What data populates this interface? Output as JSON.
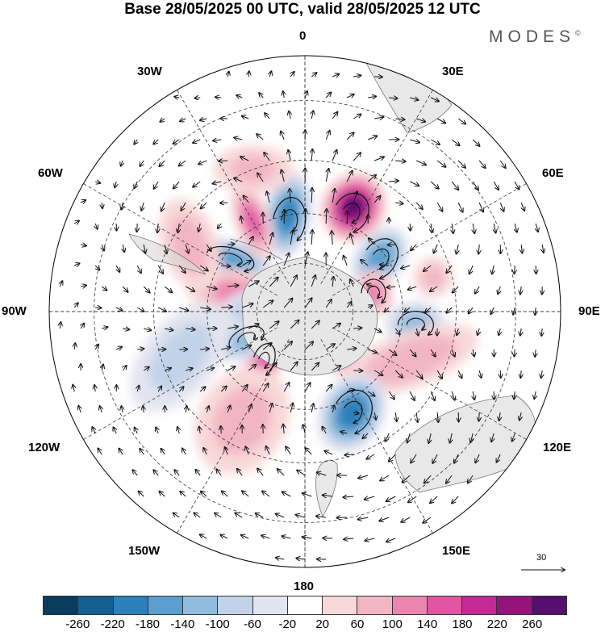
{
  "title": "Base 28/05/2025 00 UTC, valid 28/05/2025 12 UTC",
  "brand": {
    "text": "MODES",
    "mark": "©"
  },
  "longitude_labels": {
    "top": "0",
    "bottom": "180",
    "left": "90W",
    "right": "90E",
    "upper_left_30": "30W",
    "upper_right_30": "30E",
    "upper_left_60": "60W",
    "upper_right_60": "60E",
    "lower_left_120": "120W",
    "lower_right_120": "120E",
    "lower_left_150": "150W",
    "lower_right_150": "150E"
  },
  "reference_vector": {
    "label": "30"
  },
  "colorbar": {
    "colors": [
      "#0b3c5d",
      "#135f91",
      "#2b7fba",
      "#5a9fcf",
      "#92bcdd",
      "#c2d3e9",
      "#e3e4f0",
      "#ffffff",
      "#f8d8d9",
      "#f2b6c3",
      "#eb85b0",
      "#e055a2",
      "#c42a93",
      "#93157c",
      "#55106e"
    ],
    "ticks": [
      "-260",
      "-220",
      "-180",
      "-140",
      "-100",
      "-60",
      "-20",
      "20",
      "60",
      "100",
      "140",
      "180",
      "220",
      "260"
    ]
  },
  "anomaly_centers": [
    {
      "lon": -10,
      "lat": 60,
      "value": -190,
      "sx": 30,
      "sy": 55,
      "rot": 10
    },
    {
      "lon": 25,
      "lat": 55,
      "value": 260,
      "sx": 40,
      "sy": 45,
      "rot": 30
    },
    {
      "lon": -55,
      "lat": 62,
      "value": -170,
      "sx": 55,
      "sy": 24,
      "rot": 15
    },
    {
      "lon": -30,
      "lat": 58,
      "value": 140,
      "sx": 22,
      "sy": 50,
      "rot": -20
    },
    {
      "lon": 55,
      "lat": 62,
      "value": -170,
      "sx": 30,
      "sy": 45,
      "rot": 35
    },
    {
      "lon": 75,
      "lat": 68,
      "value": 110,
      "sx": 25,
      "sy": 30,
      "rot": 0
    },
    {
      "lon": 97,
      "lat": 56,
      "value": -120,
      "sx": 38,
      "sy": 30,
      "rot": 0
    },
    {
      "lon": 115,
      "lat": 55,
      "value": 90,
      "sx": 90,
      "sy": 35,
      "rot": -20
    },
    {
      "lon": 155,
      "lat": 56,
      "value": -200,
      "sx": 40,
      "sy": 52,
      "rot": 30
    },
    {
      "lon": -140,
      "lat": 70,
      "value": 150,
      "sx": 24,
      "sy": 45,
      "rot": 20
    },
    {
      "lon": -115,
      "lat": 70,
      "value": -120,
      "sx": 45,
      "sy": 24,
      "rot": -25
    },
    {
      "lon": -75,
      "lat": 68,
      "value": 100,
      "sx": 65,
      "sy": 30,
      "rot": 10
    },
    {
      "lon": -90,
      "lat": 72,
      "value": -80,
      "sx": 30,
      "sy": 25,
      "rot": 0
    },
    {
      "lon": -150,
      "lat": 52,
      "value": 70,
      "sx": 55,
      "sy": 70,
      "rot": 30
    },
    {
      "lon": -110,
      "lat": 50,
      "value": -70,
      "sx": 45,
      "sy": 80,
      "rot": 40
    },
    {
      "lon": -60,
      "lat": 50,
      "value": 70,
      "sx": 35,
      "sy": 60,
      "rot": -20
    },
    {
      "lon": 140,
      "lat": 72,
      "value": 90,
      "sx": 22,
      "sy": 25,
      "rot": 0
    },
    {
      "lon": 120,
      "lat": 75,
      "value": -60,
      "sx": 22,
      "sy": 22,
      "rot": 0
    },
    {
      "lon": 75,
      "lat": 50,
      "value": 60,
      "sx": 25,
      "sy": 25,
      "rot": 0
    },
    {
      "lon": -20,
      "lat": 45,
      "value": 60,
      "sx": 50,
      "sy": 30,
      "rot": 0
    }
  ],
  "vortices": [
    {
      "lon": -10,
      "lat": 62,
      "w": 40,
      "h": 60,
      "rot": 10
    },
    {
      "lon": 25,
      "lat": 57,
      "w": 42,
      "h": 52,
      "rot": 30
    },
    {
      "lon": -55,
      "lat": 62,
      "w": 60,
      "h": 28,
      "rot": 15
    },
    {
      "lon": 55,
      "lat": 62,
      "w": 40,
      "h": 55,
      "rot": 35
    },
    {
      "lon": 97,
      "lat": 56,
      "w": 44,
      "h": 34,
      "rot": 0
    },
    {
      "lon": 155,
      "lat": 56,
      "w": 46,
      "h": 58,
      "rot": 30
    },
    {
      "lon": -140,
      "lat": 70,
      "w": 26,
      "h": 44,
      "rot": 20
    },
    {
      "lon": -115,
      "lat": 70,
      "w": 46,
      "h": 26,
      "rot": -25
    },
    {
      "lon": 75,
      "lat": 68,
      "w": 30,
      "h": 34,
      "rot": 0
    }
  ]
}
